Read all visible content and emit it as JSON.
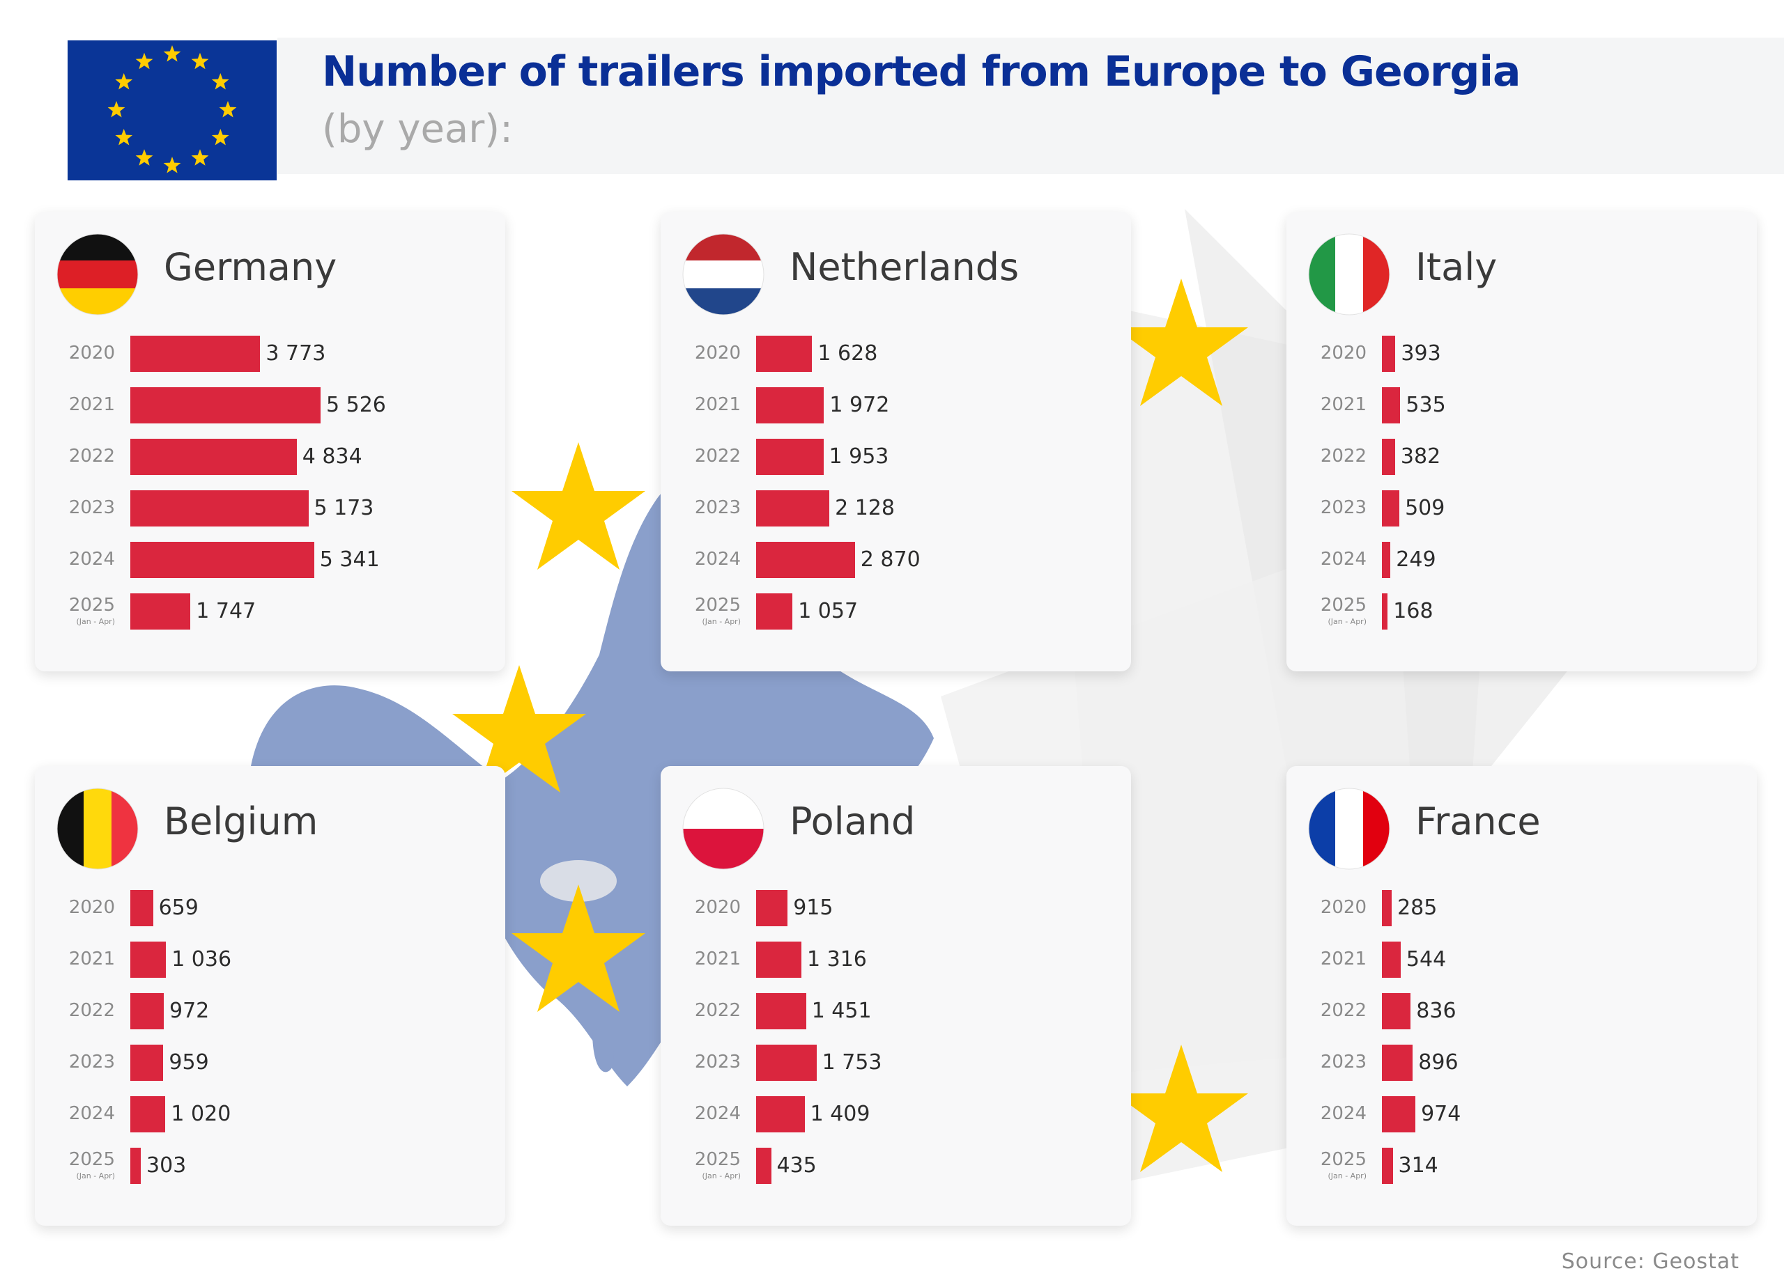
{
  "header": {
    "title": "Number of trailers imported from Europe to Georgia",
    "subtitle": "(by year):"
  },
  "source": "Source: Geostat",
  "colors": {
    "bar": "#da263e",
    "eu_blue": "#0a3597",
    "eu_star": "#ffcc00",
    "map": "#8a9fcb"
  },
  "chart_data": [
    {
      "type": "bar",
      "title": "Germany",
      "flag": "germany-flag-icon",
      "categories": [
        "2020",
        "2021",
        "2022",
        "2023",
        "2024",
        "2025"
      ],
      "category_notes": [
        "",
        "",
        "",
        "",
        "",
        "(Jan - Apr)"
      ],
      "values": [
        3773,
        5526,
        4834,
        5173,
        5341,
        1747
      ],
      "labels": [
        "3 773",
        "5 526",
        "4 834",
        "5 173",
        "5 341",
        "1 747"
      ]
    },
    {
      "type": "bar",
      "title": "Netherlands",
      "flag": "netherlands-flag-icon",
      "categories": [
        "2020",
        "2021",
        "2022",
        "2023",
        "2024",
        "2025"
      ],
      "category_notes": [
        "",
        "",
        "",
        "",
        "",
        "(Jan - Apr)"
      ],
      "values": [
        1628,
        1972,
        1953,
        2128,
        2870,
        1057
      ],
      "labels": [
        "1 628",
        "1 972",
        "1 953",
        "2 128",
        "2 870",
        "1 057"
      ]
    },
    {
      "type": "bar",
      "title": "Italy",
      "flag": "italy-flag-icon",
      "categories": [
        "2020",
        "2021",
        "2022",
        "2023",
        "2024",
        "2025"
      ],
      "category_notes": [
        "",
        "",
        "",
        "",
        "",
        "(Jan - Apr)"
      ],
      "values": [
        393,
        535,
        382,
        509,
        249,
        168
      ],
      "labels": [
        "393",
        "535",
        "382",
        "509",
        "249",
        "168"
      ]
    },
    {
      "type": "bar",
      "title": "Belgium",
      "flag": "belgium-flag-icon",
      "categories": [
        "2020",
        "2021",
        "2022",
        "2023",
        "2024",
        "2025"
      ],
      "category_notes": [
        "",
        "",
        "",
        "",
        "",
        "(Jan - Apr)"
      ],
      "values": [
        659,
        1036,
        972,
        959,
        1020,
        303
      ],
      "labels": [
        "659",
        "1 036",
        "972",
        "959",
        "1 020",
        "303"
      ]
    },
    {
      "type": "bar",
      "title": "Poland",
      "flag": "poland-flag-icon",
      "categories": [
        "2020",
        "2021",
        "2022",
        "2023",
        "2024",
        "2025"
      ],
      "category_notes": [
        "",
        "",
        "",
        "",
        "",
        "(Jan - Apr)"
      ],
      "values": [
        915,
        1316,
        1451,
        1753,
        1409,
        435
      ],
      "labels": [
        "915",
        "1 316",
        "1 451",
        "1 753",
        "1 409",
        "435"
      ]
    },
    {
      "type": "bar",
      "title": "France",
      "flag": "france-flag-icon",
      "categories": [
        "2020",
        "2021",
        "2022",
        "2023",
        "2024",
        "2025"
      ],
      "category_notes": [
        "",
        "",
        "",
        "",
        "",
        "(Jan - Apr)"
      ],
      "values": [
        285,
        544,
        836,
        896,
        974,
        314
      ],
      "labels": [
        "285",
        "544",
        "836",
        "896",
        "974",
        "314"
      ]
    }
  ]
}
